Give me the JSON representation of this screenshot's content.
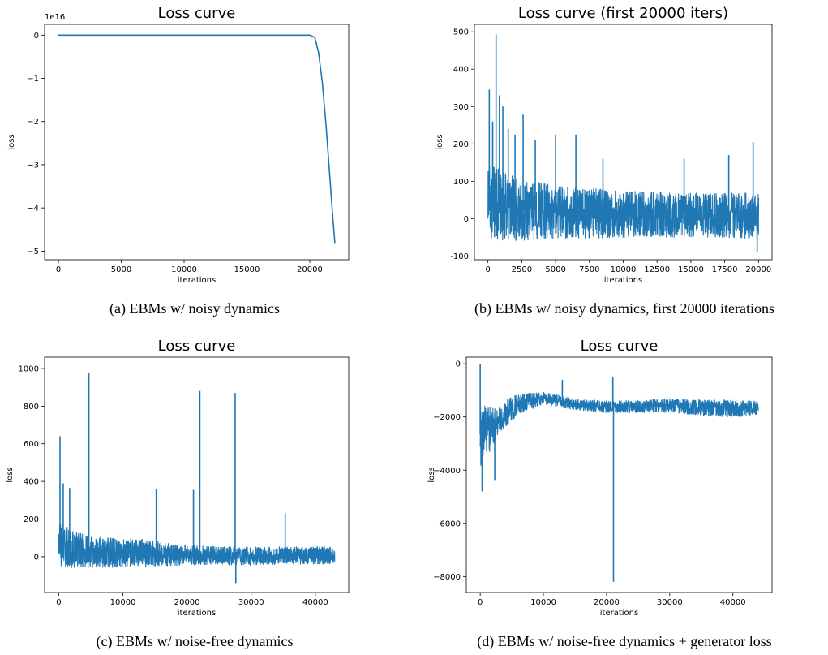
{
  "captions": {
    "a": "(a) EBMs w/ noisy dynamics",
    "b": "(b) EBMs w/ noisy dynamics, first 20000 iterations",
    "c": "(c) EBMs w/ noise-free dynamics",
    "d": "(d) EBMs w/ noise-free dynamics + generator loss"
  },
  "line_color": "#1f77b4",
  "chart_data": [
    {
      "id": "a",
      "type": "line",
      "title": "Loss curve",
      "xlabel": "iterations",
      "ylabel": "loss",
      "offset_text": "1e16",
      "xlim": [
        -1100,
        23100
      ],
      "ylim": [
        -5.2,
        0.25
      ],
      "xticks": [
        0,
        5000,
        10000,
        15000,
        20000
      ],
      "yticks": [
        0,
        -1,
        -2,
        -3,
        -4,
        -5
      ],
      "ytick_labels": [
        "0",
        "−1",
        "−2",
        "−3",
        "−4",
        "−5"
      ],
      "grid": false,
      "series": [
        {
          "x": [
            0,
            5000,
            10000,
            15000,
            20000,
            20400,
            20700,
            21000,
            21300,
            21600,
            21800,
            22000
          ],
          "y": [
            0,
            0,
            0,
            0,
            0,
            -0.05,
            -0.4,
            -1.1,
            -2.1,
            -3.3,
            -4.1,
            -4.83
          ]
        }
      ]
    },
    {
      "id": "b",
      "type": "line",
      "title": "Loss curve (first 20000 iters)",
      "xlabel": "iterations",
      "ylabel": "loss",
      "xlim": [
        -1000,
        21000
      ],
      "ylim": [
        -110,
        520
      ],
      "xticks": [
        0,
        2500,
        5000,
        7500,
        10000,
        12500,
        15000,
        17500,
        20000
      ],
      "yticks": [
        -100,
        0,
        100,
        200,
        300,
        400,
        500
      ],
      "grid": false,
      "band": {
        "x": [
          0,
          2000,
          5000,
          10000,
          15000,
          20000
        ],
        "upper": [
          150,
          110,
          90,
          75,
          70,
          70
        ],
        "lower": [
          -60,
          -60,
          -55,
          -52,
          -50,
          -55
        ]
      },
      "spikes": [
        {
          "x": 100,
          "y": 345
        },
        {
          "x": 350,
          "y": 260
        },
        {
          "x": 600,
          "y": 493
        },
        {
          "x": 850,
          "y": 330
        },
        {
          "x": 1100,
          "y": 300
        },
        {
          "x": 1500,
          "y": 240
        },
        {
          "x": 2000,
          "y": 225
        },
        {
          "x": 2600,
          "y": 278
        },
        {
          "x": 3500,
          "y": 210
        },
        {
          "x": 5000,
          "y": 225
        },
        {
          "x": 6500,
          "y": 225
        },
        {
          "x": 8500,
          "y": 160
        },
        {
          "x": 14500,
          "y": 160
        },
        {
          "x": 17800,
          "y": 170
        },
        {
          "x": 19600,
          "y": 205
        },
        {
          "x": 19900,
          "y": -90
        }
      ]
    },
    {
      "id": "c",
      "type": "line",
      "title": "Loss curve",
      "xlabel": "iterations",
      "ylabel": "loss",
      "xlim": [
        -2200,
        45200
      ],
      "ylim": [
        -190,
        1060
      ],
      "xticks": [
        0,
        10000,
        20000,
        30000,
        40000
      ],
      "yticks": [
        0,
        200,
        400,
        600,
        800,
        1000
      ],
      "grid": false,
      "band": {
        "x": [
          0,
          2000,
          5000,
          15000,
          20000,
          30000,
          43000
        ],
        "upper": [
          200,
          140,
          110,
          90,
          60,
          55,
          55
        ],
        "lower": [
          -65,
          -60,
          -60,
          -55,
          -45,
          -45,
          -40
        ]
      },
      "spikes": [
        {
          "x": 200,
          "y": 640
        },
        {
          "x": 700,
          "y": 390
        },
        {
          "x": 1700,
          "y": 365
        },
        {
          "x": 4700,
          "y": 975
        },
        {
          "x": 15200,
          "y": 360
        },
        {
          "x": 21000,
          "y": 355
        },
        {
          "x": 22000,
          "y": 880
        },
        {
          "x": 27500,
          "y": 870
        },
        {
          "x": 27600,
          "y": -140
        },
        {
          "x": 35300,
          "y": 230
        }
      ]
    },
    {
      "id": "d",
      "type": "line",
      "title": "Loss curve",
      "xlabel": "iterations",
      "ylabel": "loss",
      "xlim": [
        -2200,
        46200
      ],
      "ylim": [
        -8600,
        250
      ],
      "xticks": [
        0,
        10000,
        20000,
        30000,
        40000
      ],
      "yticks": [
        0,
        -2000,
        -4000,
        -6000,
        -8000
      ],
      "ytick_labels": [
        "0",
        "−2000",
        "−4000",
        "−6000",
        "−8000"
      ],
      "grid": false,
      "band": {
        "x": [
          0,
          1000,
          3000,
          6000,
          10000,
          15000,
          20000,
          30000,
          40000,
          44000
        ],
        "upper": [
          -1400,
          -1600,
          -1500,
          -1100,
          -1050,
          -1300,
          -1400,
          -1300,
          -1350,
          -1400
        ],
        "lower": [
          -3900,
          -3500,
          -2700,
          -1900,
          -1550,
          -1750,
          -1850,
          -1850,
          -2050,
          -1900
        ]
      },
      "spikes": [
        {
          "x": 0,
          "y": 0
        },
        {
          "x": 300,
          "y": -4800
        },
        {
          "x": 2300,
          "y": -4400
        },
        {
          "x": 13000,
          "y": -600
        },
        {
          "x": 21000,
          "y": -500
        },
        {
          "x": 21100,
          "y": -8200
        }
      ]
    }
  ]
}
